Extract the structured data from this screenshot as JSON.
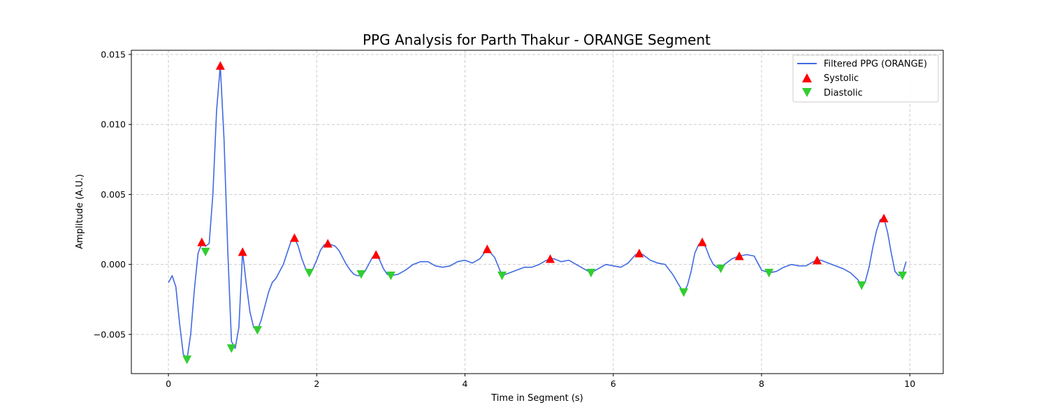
{
  "chart_data": {
    "type": "line",
    "title": "PPG Analysis for Parth Thakur - ORANGE Segment",
    "xlabel": "Time in Segment (s)",
    "ylabel": "Amplitude (A.U.)",
    "xlim": [
      -0.5,
      10.45
    ],
    "ylim": [
      -0.0078,
      0.0153
    ],
    "xticks": [
      0,
      2,
      4,
      6,
      8,
      10
    ],
    "xtick_labels": [
      "0",
      "2",
      "4",
      "6",
      "8",
      "10"
    ],
    "yticks": [
      -0.005,
      0,
      0.005,
      0.01,
      0.015
    ],
    "ytick_labels": [
      "−0.005",
      "0.000",
      "0.005",
      "0.010",
      "0.015"
    ],
    "grid": true,
    "legend_position": "upper-right",
    "series": [
      {
        "name": "Filtered PPG (ORANGE)",
        "kind": "line",
        "color": "#4169e1",
        "x": [
          0,
          0.05,
          0.1,
          0.15,
          0.2,
          0.25,
          0.3,
          0.35,
          0.4,
          0.45,
          0.5,
          0.55,
          0.6,
          0.65,
          0.7,
          0.75,
          0.8,
          0.85,
          0.9,
          0.95,
          1.0,
          1.05,
          1.1,
          1.15,
          1.2,
          1.25,
          1.3,
          1.35,
          1.4,
          1.45,
          1.5,
          1.55,
          1.6,
          1.65,
          1.7,
          1.75,
          1.8,
          1.85,
          1.9,
          1.95,
          2.0,
          2.05,
          2.1,
          2.15,
          2.2,
          2.25,
          2.3,
          2.35,
          2.4,
          2.45,
          2.5,
          2.55,
          2.6,
          2.65,
          2.7,
          2.75,
          2.8,
          2.85,
          2.9,
          2.95,
          3.0,
          3.1,
          3.2,
          3.3,
          3.4,
          3.5,
          3.6,
          3.7,
          3.8,
          3.9,
          4.0,
          4.1,
          4.2,
          4.3,
          4.4,
          4.5,
          4.6,
          4.7,
          4.8,
          4.9,
          5.0,
          5.1,
          5.15,
          5.2,
          5.3,
          5.4,
          5.5,
          5.6,
          5.7,
          5.8,
          5.9,
          6.0,
          6.1,
          6.2,
          6.3,
          6.35,
          6.4,
          6.5,
          6.6,
          6.7,
          6.8,
          6.9,
          6.95,
          7.0,
          7.05,
          7.1,
          7.15,
          7.2,
          7.25,
          7.3,
          7.35,
          7.4,
          7.45,
          7.5,
          7.6,
          7.7,
          7.8,
          7.9,
          8.0,
          8.1,
          8.2,
          8.3,
          8.4,
          8.5,
          8.6,
          8.7,
          8.75,
          8.8,
          8.9,
          9.0,
          9.1,
          9.2,
          9.3,
          9.35,
          9.4,
          9.45,
          9.5,
          9.55,
          9.6,
          9.65,
          9.7,
          9.75,
          9.8,
          9.85,
          9.9,
          9.95
        ],
        "y": [
          -0.0013,
          -0.0008,
          -0.0016,
          -0.0042,
          -0.0064,
          -0.0068,
          -0.005,
          -0.0018,
          0.0008,
          0.0015,
          0.0013,
          0.0015,
          0.005,
          0.011,
          0.0142,
          0.009,
          0.001,
          -0.0055,
          -0.006,
          -0.0045,
          0.0009,
          -0.0014,
          -0.0034,
          -0.0045,
          -0.0047,
          -0.004,
          -0.003,
          -0.002,
          -0.0013,
          -0.001,
          -0.0005,
          0.0,
          0.0008,
          0.0016,
          0.0019,
          0.0013,
          0.0004,
          -0.0003,
          -0.0006,
          -0.0003,
          0.0003,
          0.001,
          0.0014,
          0.0015,
          0.0014,
          0.0013,
          0.001,
          0.0005,
          0.0,
          -0.0004,
          -0.0007,
          -0.0008,
          -0.0008,
          -0.0005,
          0.0,
          0.0005,
          0.0007,
          0.0003,
          -0.0003,
          -0.0007,
          -0.0008,
          -0.0007,
          -0.0004,
          0.0,
          0.0002,
          0.0002,
          -0.0001,
          -0.0002,
          -0.0001,
          0.0002,
          0.0003,
          0.0001,
          0.0004,
          0.0011,
          0.0005,
          -0.0008,
          -0.0006,
          -0.0004,
          -0.0002,
          -0.0002,
          0.0,
          0.0003,
          0.0004,
          0.0004,
          0.0002,
          0.0003,
          0.0,
          -0.0003,
          -0.0006,
          -0.0003,
          0.0,
          -0.0001,
          -0.0002,
          0.0001,
          0.0007,
          0.0008,
          0.0007,
          0.0003,
          0.0001,
          0.0,
          -0.0007,
          -0.0016,
          -0.002,
          -0.0015,
          -0.0005,
          0.0008,
          0.0014,
          0.0016,
          0.0012,
          0.0005,
          0.0,
          -0.0002,
          -0.0003,
          0.0,
          0.0004,
          0.0006,
          0.0007,
          0.0006,
          -0.0004,
          -0.0006,
          -0.0005,
          -0.0002,
          0.0,
          -0.0001,
          -0.0001,
          0.0002,
          0.0003,
          0.0003,
          0.0001,
          -0.0001,
          -0.0003,
          -0.0006,
          -0.0011,
          -0.0015,
          -0.0012,
          -0.0002,
          0.0012,
          0.0024,
          0.0032,
          0.0033,
          0.0023,
          0.0008,
          -0.0005,
          -0.0008,
          -0.0007,
          0.0002
        ]
      },
      {
        "name": "Systolic",
        "kind": "scatter",
        "marker": "triangle-up",
        "color": "#ff0000",
        "x": [
          0.45,
          0.7,
          1.0,
          1.7,
          2.15,
          2.8,
          4.3,
          5.15,
          6.35,
          7.2,
          7.7,
          8.75,
          9.65
        ],
        "y": [
          0.0016,
          0.0142,
          0.0009,
          0.0019,
          0.0015,
          0.0007,
          0.0011,
          0.0004,
          0.0008,
          0.0016,
          0.0006,
          0.0003,
          0.0033
        ]
      },
      {
        "name": "Diastolic",
        "kind": "scatter",
        "marker": "triangle-down",
        "color": "#32cd32",
        "x": [
          0.25,
          0.5,
          0.85,
          1.2,
          1.9,
          2.6,
          3.0,
          4.5,
          5.7,
          6.95,
          7.45,
          8.1,
          9.35,
          9.9
        ],
        "y": [
          -0.0068,
          0.0009,
          -0.006,
          -0.0047,
          -0.0006,
          -0.0007,
          -0.0008,
          -0.0008,
          -0.0006,
          -0.002,
          -0.0003,
          -0.0006,
          -0.0015,
          -0.0008
        ]
      }
    ]
  }
}
